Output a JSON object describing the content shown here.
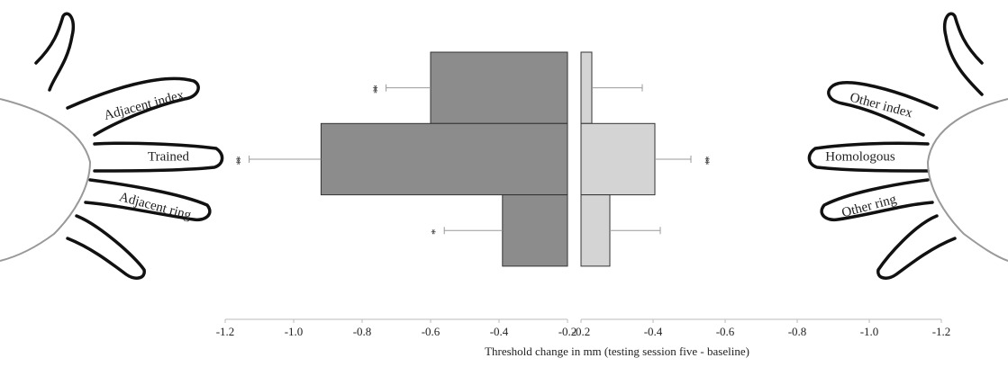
{
  "chart_data": [
    {
      "type": "bar",
      "orientation": "horizontal",
      "color": "#8c8c8c",
      "categories": [
        "Adjacent index",
        "Trained",
        "Adjacent ring"
      ],
      "values": [
        -0.6,
        -0.92,
        -0.39
      ],
      "errors": [
        0.13,
        0.21,
        0.17
      ],
      "significance": [
        "**",
        "**",
        "*"
      ],
      "xlim": [
        -0.2,
        -1.2
      ],
      "xticks": [
        -1.2,
        {
          "value": -1,
          "label": "-1.0"
        },
        -0.8,
        -0.6,
        -0.4,
        -0.2
      ],
      "xlabel": "Threshold change in mm (testing session five - baseline)"
    },
    {
      "type": "bar",
      "orientation": "horizontal",
      "color": "#d4d4d4",
      "categories": [
        "Other index",
        "Homologous",
        "Other ring"
      ],
      "values": [
        -0.23,
        -0.405,
        -0.28
      ],
      "errors": [
        0.14,
        0.1,
        0.14
      ],
      "significance": [
        null,
        "**",
        null
      ],
      "xlim": [
        -0.2,
        -1.2
      ],
      "xticks": [
        -0.2,
        -0.4,
        -0.6,
        -0.8,
        {
          "value": -1,
          "label": "-1.0"
        },
        -1.2
      ]
    }
  ]
}
